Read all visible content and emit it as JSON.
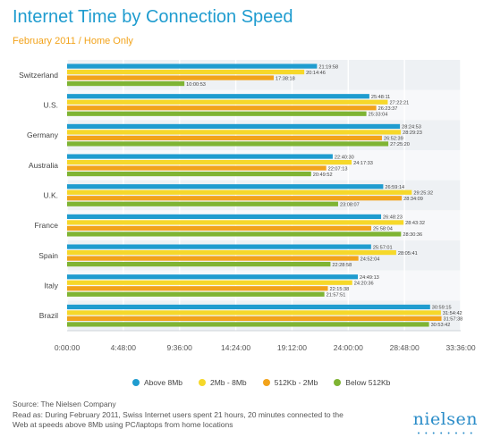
{
  "header": {
    "title": "Internet Time by Connection Speed",
    "subtitle": "February 2011 / Home Only"
  },
  "footer": {
    "source": "Source: The Nielsen Company",
    "note_line1": "Read as: During February 2011, Swiss Internet users spent 21 hours, 20 minutes connected to the",
    "note_line2": "Web at speeds above 8Mb using PC/laptops from home locations"
  },
  "brand": {
    "logo": "nielsen"
  },
  "colors": {
    "Above 8Mb": "#1f9ccf",
    "2Mb - 8Mb": "#f6d82a",
    "512Kb - 2Mb": "#f2a31b",
    "Below 512Kb": "#7fb433",
    "title": "#1f9ccf",
    "subtitle": "#f2a31b"
  },
  "chart_data": {
    "type": "bar",
    "orientation": "horizontal",
    "categories": [
      "Switzerland",
      "U.S.",
      "Germany",
      "Australia",
      "U.K.",
      "France",
      "Spain",
      "Italy",
      "Brazil"
    ],
    "series": [
      {
        "name": "Above 8Mb",
        "values": [
          "21:19:58",
          "25:48:11",
          "28:24:53",
          "22:40:30",
          "26:59:14",
          "26:48:23",
          "25:57:01",
          "24:49:13",
          "30:59:15"
        ]
      },
      {
        "name": "2Mb - 8Mb",
        "values": [
          "20:14:46",
          "27:22:21",
          "28:29:23",
          "24:17:33",
          "29:25:32",
          "28:43:32",
          "28:05:41",
          "24:20:36",
          "31:54:42"
        ]
      },
      {
        "name": "512Kb - 2Mb",
        "values": [
          "17:38:18",
          "26:23:37",
          "26:52:39",
          "22:07:13",
          "28:34:09",
          "25:58:04",
          "24:52:04",
          "22:15:38",
          "31:57:38"
        ]
      },
      {
        "name": "Below 512Kb",
        "values": [
          "10:00:53",
          "25:33:04",
          "27:25:20",
          "20:49:52",
          "23:08:07",
          "28:30:36",
          "22:28:58",
          "21:57:51",
          "30:53:42"
        ]
      }
    ],
    "x_ticks": [
      "0:00:00",
      "4:48:00",
      "9:36:00",
      "14:24:00",
      "19:12:00",
      "24:00:00",
      "28:48:00",
      "33:36:00"
    ],
    "xlim": [
      "0:00:00",
      "33:36:00"
    ],
    "grid": true,
    "legend_position": "bottom"
  }
}
